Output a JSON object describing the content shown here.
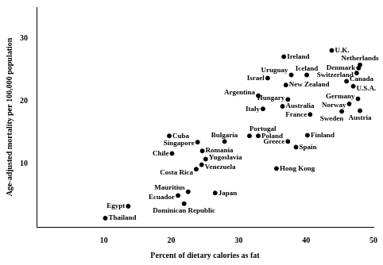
{
  "chart_data": {
    "type": "scatter",
    "x_label": "Percent of dietary calories as fat",
    "y_label": "Age-adjusted mortality per 100,000 population",
    "point_labels": [
      "Thailand",
      "Egypt",
      "Ecuador",
      "Mauritius",
      "Dominican Republic",
      "Japan",
      "Chile",
      "Cuba",
      "Singapore",
      "Bulgaria",
      "Romania",
      "Yugoslavia",
      "Costa Rica",
      "Venezuela",
      "Portugal",
      "Poland",
      "Greece",
      "Spain",
      "Finland",
      "Hong Kong",
      "Italy",
      "Argentina",
      "Israel",
      "New Zealand",
      "Uruguay",
      "Iceland",
      "Ireland",
      "U.K.",
      "Netherlands",
      "Denmark",
      "Switzerland",
      "Canada",
      "U.S.A.",
      "Hungary",
      "Australia",
      "Germany",
      "Norway",
      "Austria",
      "Sweden",
      "France"
    ],
    "x": [
      10.2,
      13.6,
      21.0,
      22.5,
      21.9,
      26.5,
      20.1,
      19.7,
      23.9,
      27.9,
      24.6,
      25.1,
      23.7,
      24.5,
      31.6,
      32.9,
      37.3,
      38.5,
      40.2,
      35.6,
      33.6,
      32.9,
      34.3,
      37.0,
      37.8,
      40.1,
      36.7,
      43.8,
      48.0,
      47.8,
      47.5,
      46.0,
      47.0,
      37.3,
      36.5,
      47.7,
      46.4,
      48.0,
      45.3,
      40.6
    ],
    "values": [
      1.4,
      3.3,
      5.0,
      5.6,
      3.7,
      5.4,
      11.7,
      14.5,
      13.5,
      13.6,
      12.1,
      10.8,
      9.2,
      9.9,
      14.5,
      14.5,
      13.6,
      12.7,
      14.6,
      9.3,
      18.8,
      20.9,
      23.7,
      22.6,
      24.2,
      24.2,
      27.1,
      28.1,
      25.8,
      25.3,
      24.5,
      23.2,
      22.4,
      20.3,
      19.2,
      20.4,
      19.6,
      18.5,
      18.4,
      17.9
    ],
    "color": "#000000",
    "marker": "circle",
    "xlim": [
      0,
      50
    ],
    "xticks": [
      10,
      20,
      30,
      40,
      50
    ],
    "ylim": [
      0,
      35
    ],
    "yticks": [
      10,
      20,
      30
    ],
    "grid": false
  }
}
